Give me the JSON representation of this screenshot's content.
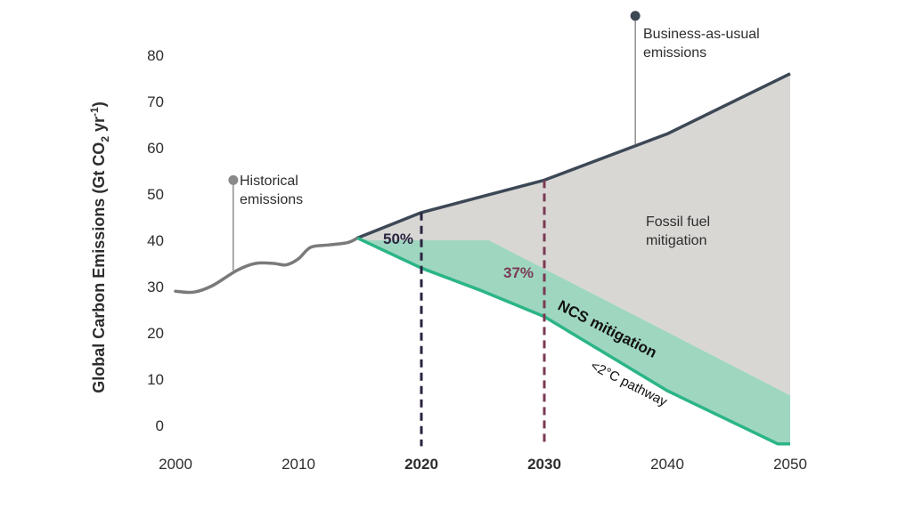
{
  "chart_data": {
    "type": "area",
    "title": "",
    "xlabel": "",
    "ylabel": "Global Carbon Emissions (Gt CO₂ yr⁻¹)",
    "ylabel_parts": {
      "main": "Global Carbon Emissions (Gt CO",
      "sub": "2",
      "mid": " yr",
      "sup": "-1",
      "end": ")"
    },
    "xlim": [
      2000,
      2050
    ],
    "ylim": [
      -5,
      80
    ],
    "y_ticks": [
      0,
      10,
      20,
      30,
      40,
      50,
      60,
      70,
      80
    ],
    "x_ticks": [
      {
        "value": 2000,
        "label": "2000",
        "highlight": false
      },
      {
        "value": 2010,
        "label": "2010",
        "highlight": false
      },
      {
        "value": 2020,
        "label": "2020",
        "highlight": true,
        "color": "#2b2340"
      },
      {
        "value": 2030,
        "label": "2030",
        "highlight": true,
        "color": "#7a3a55"
      },
      {
        "value": 2040,
        "label": "2040",
        "highlight": false
      },
      {
        "value": 2050,
        "label": "2050",
        "highlight": false
      }
    ],
    "series": [
      {
        "name": "Historical emissions",
        "color": "#7a7a7a",
        "x": [
          2000,
          2001.5,
          2003,
          2005,
          2006.5,
          2008,
          2009,
          2010,
          2011,
          2012.5,
          2014,
          2014.8
        ],
        "y": [
          29,
          28.8,
          30.2,
          33.5,
          35,
          35,
          34.7,
          36,
          38.5,
          39,
          39.5,
          40.5
        ]
      },
      {
        "name": "Business-as-usual emissions",
        "color": "#3d4856",
        "x": [
          2014.8,
          2020,
          2025,
          2030,
          2035,
          2040,
          2050
        ],
        "y": [
          40.5,
          46,
          49.5,
          53,
          58,
          63,
          76
        ]
      },
      {
        "name": "<2°C pathway",
        "color": "#2bb587",
        "x": [
          2014.8,
          2020,
          2025,
          2030,
          2035,
          2040,
          2049,
          2050
        ],
        "y": [
          40.5,
          34,
          29,
          23.5,
          15.5,
          7.5,
          -4,
          -4
        ]
      },
      {
        "name": "NCS mitigation upper bound",
        "x": [
          2014.8,
          2016,
          2025.5,
          2050
        ],
        "y": [
          40.5,
          40,
          40,
          6.5
        ]
      }
    ],
    "areas": [
      {
        "name": "Fossil fuel mitigation",
        "color": "#d9d7d4"
      },
      {
        "name": "NCS mitigation",
        "color": "#9fd6c0"
      }
    ],
    "vlines": [
      {
        "x": 2020,
        "color": "#2b2340",
        "label": "50%",
        "y_from": -4.5,
        "y_to": 46
      },
      {
        "x": 2030,
        "color": "#7a3a55",
        "label": "37%",
        "y_from": -4.5,
        "y_to": 53
      }
    ],
    "annotations": {
      "historical": {
        "line1": "Historical",
        "line2": "emissions",
        "marker_x": 2004.7,
        "marker_y": 53,
        "anchor_y": 33.5
      },
      "bau": {
        "line1": "Business-as-usual",
        "line2": "emissions",
        "marker_x": 2037.4,
        "marker_y": 88.5,
        "anchor_y": 60.5
      },
      "fossil": {
        "line1": "Fossil fuel",
        "line2": "mitigation"
      },
      "ncs": {
        "text": "NCS mitigation"
      },
      "pathway": {
        "text": "<2°C pathway"
      }
    }
  }
}
